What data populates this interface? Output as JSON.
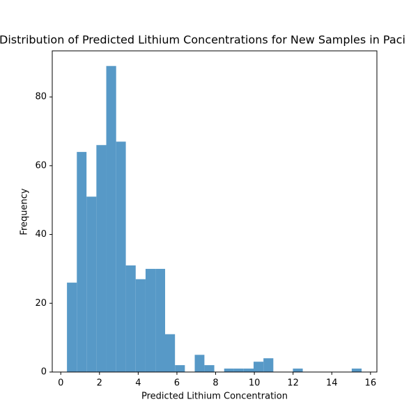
{
  "chart_data": {
    "type": "histogram",
    "title": "Distribution of Predicted Lithium Concentrations for New Samples in Paci",
    "x_label": "Predicted Lithium Concentration",
    "y_label": "Frequency",
    "bins": [
      0.32,
      0.83,
      1.33,
      1.84,
      2.35,
      2.86,
      3.36,
      3.87,
      4.38,
      4.89,
      5.39,
      5.9,
      6.41,
      6.92,
      7.42,
      7.93,
      8.44,
      8.95,
      9.45,
      9.96,
      10.47,
      10.98,
      11.48,
      11.99,
      12.5,
      13.0,
      13.51,
      14.02,
      14.53,
      15.03,
      15.54
    ],
    "values": [
      26,
      64,
      51,
      66,
      89,
      67,
      31,
      27,
      30,
      30,
      11,
      2,
      0,
      5,
      2,
      0,
      1,
      1,
      1,
      3,
      4,
      0,
      0,
      1,
      0,
      0,
      0,
      0,
      0,
      1
    ],
    "color": "#5799c7",
    "xlim": [
      -0.44,
      16.33
    ],
    "xticks": [
      0,
      2,
      4,
      6,
      8,
      10,
      12,
      14,
      16
    ],
    "ylim": [
      0,
      93.4
    ],
    "yticks": [
      0,
      20,
      40,
      60,
      80
    ]
  }
}
